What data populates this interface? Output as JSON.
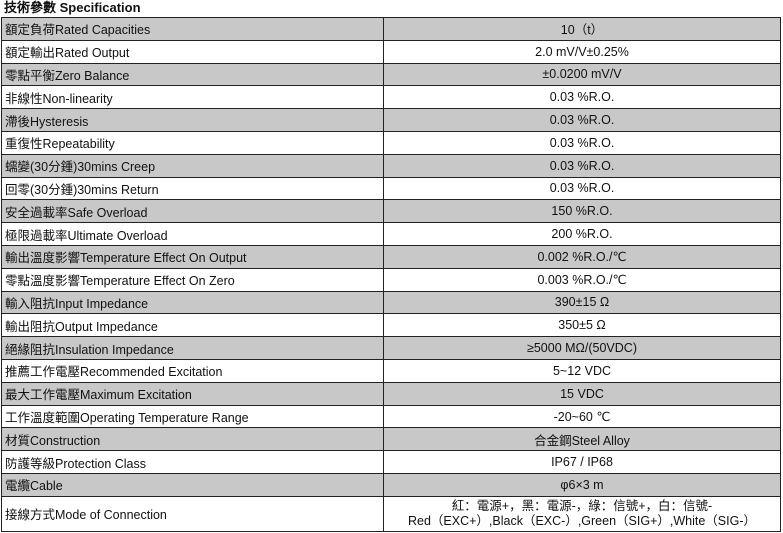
{
  "title": "技術參數 Specification",
  "rows": [
    {
      "label": "額定負荷Rated Capacities",
      "value": "10（t）"
    },
    {
      "label": "額定輸出Rated Output",
      "value": "2.0 mV/V±0.25%"
    },
    {
      "label": "零點平衡Zero Balance",
      "value": "±0.0200 mV/V"
    },
    {
      "label": "非線性Non-linearity",
      "value": "0.03 %R.O."
    },
    {
      "label": "滯後Hysteresis",
      "value": "0.03 %R.O."
    },
    {
      "label": "重復性Repeatability",
      "value": "0.03 %R.O."
    },
    {
      "label": "蠕變(30分鍾)30mins Creep",
      "value": "0.03 %R.O."
    },
    {
      "label": "回零(30分鍾)30mins Return",
      "value": "0.03 %R.O."
    },
    {
      "label": "安全過載率Safe Overload",
      "value": "150 %R.O."
    },
    {
      "label": "極限過載率Ultimate Overload",
      "value": "200 %R.O."
    },
    {
      "label": "輸出溫度影響Temperature Effect On Output",
      "value": "0.002 %R.O./℃"
    },
    {
      "label": "零點溫度影響Temperature Effect On Zero",
      "value": "0.003 %R.O./℃"
    },
    {
      "label": "輸入阻抗Input Impedance",
      "value": "390±15 Ω"
    },
    {
      "label": "輸出阻抗Output Impedance",
      "value": "350±5 Ω"
    },
    {
      "label": "絕緣阻抗Insulation Impedance",
      "value": "≥5000 MΩ/(50VDC)"
    },
    {
      "label": "推薦工作電壓Recommended Excitation",
      "value": "5~12 VDC"
    },
    {
      "label": "最大工作電壓Maximum Excitation",
      "value": "15 VDC"
    },
    {
      "label": "工作溫度範圍Operating Temperature Range",
      "value": "-20~60 ℃"
    },
    {
      "label": "材質Construction",
      "value": "合金鋼Steel Alloy"
    },
    {
      "label": "防護等級Protection Class",
      "value": "IP67 / IP68"
    },
    {
      "label": "電纜Cable",
      "value": "φ6×3 m"
    }
  ],
  "connection": {
    "label": "接線方式Mode of Connection",
    "line1": "紅：電源+，黑：電源-，綠：信號+，白：信號-",
    "line2": "Red（EXC+）,Black（EXC-）,Green（SIG+）,White（SIG-）"
  },
  "colors": {
    "shaded_row": "#c8c8c8"
  }
}
